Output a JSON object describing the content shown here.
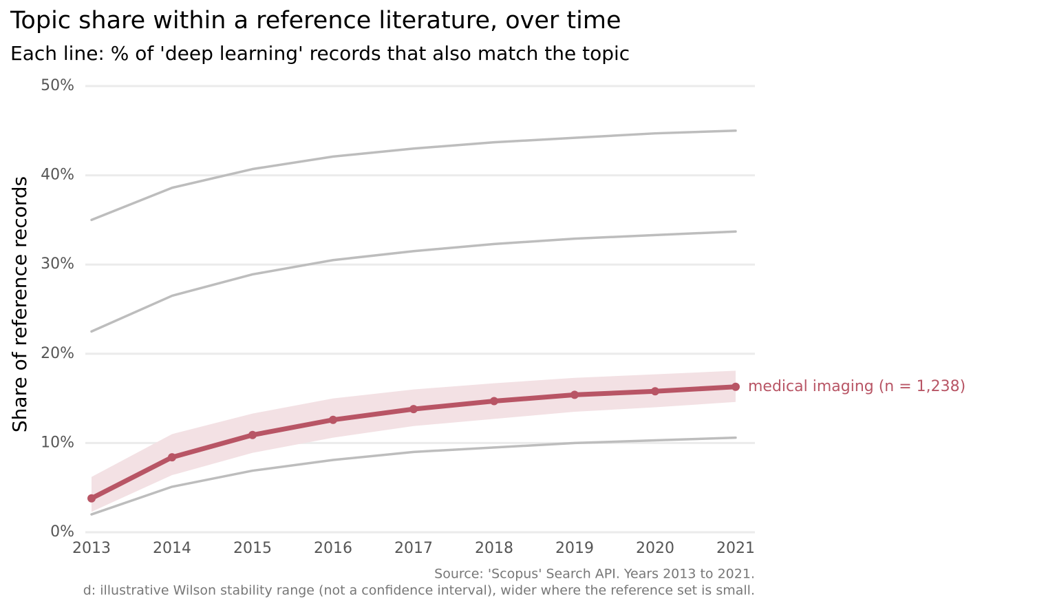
{
  "chart_data": {
    "type": "line",
    "title": "Topic share within a reference literature, over time",
    "subtitle": "Each line: % of 'deep learning' records that also match the topic",
    "y_label": "Share of reference records",
    "caption": [
      "Source: 'Scopus' Search API. Years 2013 to 2021.",
      "d: illustrative Wilson stability range (not a confidence interval), wider where the reference set is small."
    ],
    "x": [
      2013,
      2014,
      2015,
      2016,
      2017,
      2018,
      2019,
      2020,
      2021
    ],
    "xlim": [
      2013,
      2021
    ],
    "xticks": [
      2013,
      2014,
      2015,
      2016,
      2017,
      2018,
      2019,
      2020,
      2021
    ],
    "ylim": [
      0,
      50
    ],
    "yticks": [
      {
        "value": 0,
        "label": "0%"
      },
      {
        "value": 10,
        "label": "10%"
      },
      {
        "value": 20,
        "label": "20%"
      },
      {
        "value": 30,
        "label": "30%"
      },
      {
        "value": 40,
        "label": "40%"
      },
      {
        "value": 50,
        "label": "50%"
      }
    ],
    "grid": true,
    "series": [
      {
        "color": "#bdbdbd",
        "values": [
          35.0,
          38.6,
          40.7,
          42.1,
          43.0,
          43.7,
          44.2,
          44.7,
          45.0
        ]
      },
      {
        "color": "#bdbdbd",
        "values": [
          22.5,
          26.5,
          28.9,
          30.5,
          31.5,
          32.3,
          32.9,
          33.3,
          33.7
        ]
      },
      {
        "color": "#bdbdbd",
        "values": [
          2.0,
          5.1,
          6.9,
          8.1,
          9.0,
          9.5,
          10.0,
          10.3,
          10.6
        ]
      },
      {
        "name": "medical imaging (n = 1,238)",
        "color": "#b85565",
        "markers": true,
        "values": [
          3.8,
          8.4,
          10.9,
          12.6,
          13.8,
          14.7,
          15.4,
          15.8,
          16.3
        ],
        "band_color": "#f3e1e4",
        "band_upper": [
          6.2,
          11.0,
          13.3,
          15.0,
          16.0,
          16.7,
          17.3,
          17.7,
          18.1
        ],
        "band_lower": [
          2.3,
          6.4,
          8.9,
          10.6,
          11.9,
          12.7,
          13.5,
          14.0,
          14.6
        ]
      }
    ]
  }
}
